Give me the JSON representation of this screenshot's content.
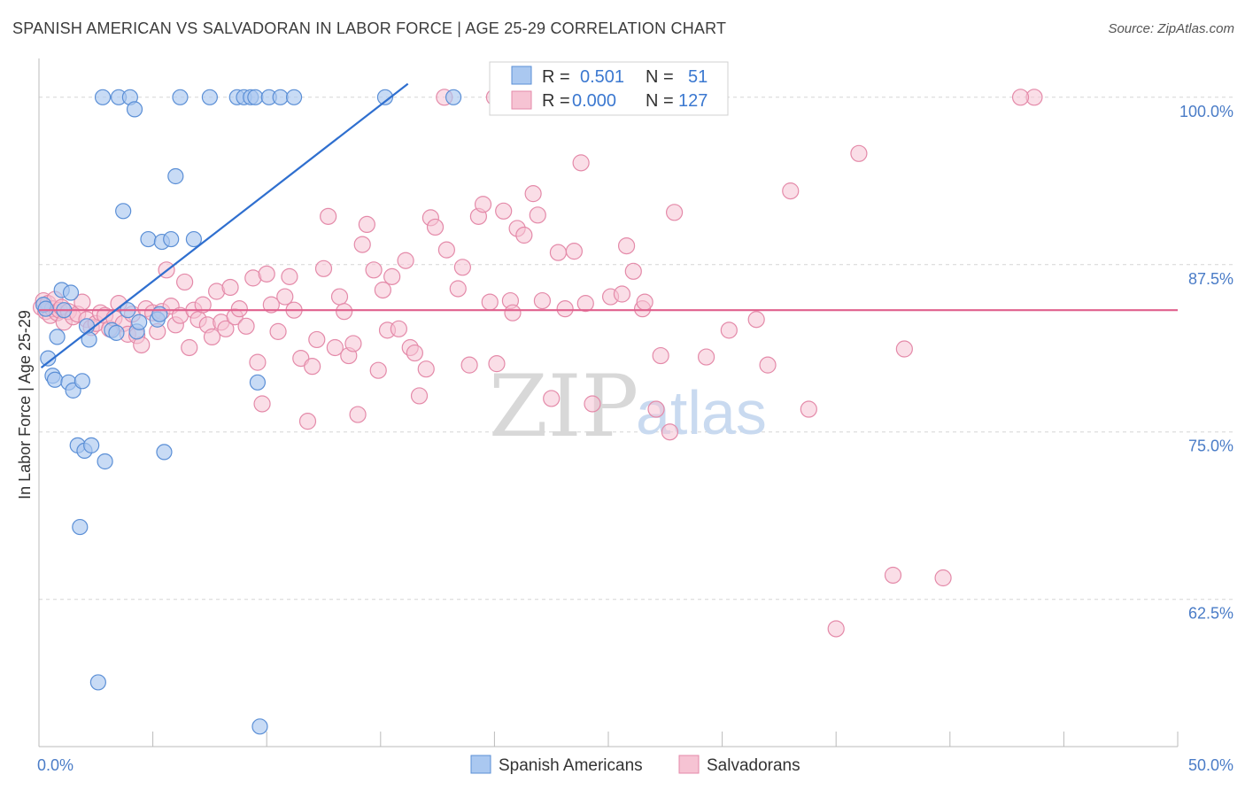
{
  "title": "SPANISH AMERICAN VS SALVADORAN IN LABOR FORCE | AGE 25-29 CORRELATION CHART",
  "source": "Source: ZipAtlas.com",
  "watermark": {
    "zip": "ZIP",
    "atlas": "atlas"
  },
  "legend": {
    "r_label": "R =",
    "n_label": "N =",
    "blue": {
      "r": "0.501",
      "n": "51"
    },
    "pink": {
      "r": "0.000",
      "n": "127"
    }
  },
  "colors": {
    "blue_fill": "#aac8f0",
    "blue_stroke": "#5b8fd6",
    "blue_line": "#2f6fcf",
    "pink_fill": "#f6c3d3",
    "pink_stroke": "#e48aa9",
    "pink_line": "#e0608d",
    "grid": "#d5d5d5",
    "tick_label": "#4a7cc7"
  },
  "chart_data": {
    "type": "scatter",
    "xlabel": "",
    "ylabel": "In Labor Force | Age 25-29",
    "xlim": [
      0,
      50
    ],
    "ylim": [
      51.5,
      102.5
    ],
    "x_tick_labels": [
      {
        "value": 0,
        "label": "0.0%"
      },
      {
        "value": 50,
        "label": "50.0%"
      }
    ],
    "y_tick_labels": [
      {
        "value": 100,
        "label": "100.0%"
      },
      {
        "value": 87.5,
        "label": "87.5%"
      },
      {
        "value": 75,
        "label": "75.0%"
      },
      {
        "value": 62.5,
        "label": "62.5%"
      }
    ],
    "grid": "horizontal dashed",
    "series": [
      {
        "name": "Spanish Americans",
        "color": "#aac8f0",
        "trend": {
          "x": [
            0.1,
            16.2
          ],
          "y": [
            79.8,
            101.0
          ]
        },
        "points": [
          [
            0.2,
            84.5
          ],
          [
            0.3,
            84.2
          ],
          [
            0.4,
            80.5
          ],
          [
            0.6,
            79.2
          ],
          [
            0.7,
            78.9
          ],
          [
            0.8,
            82.1
          ],
          [
            1.0,
            85.6
          ],
          [
            1.1,
            84.1
          ],
          [
            1.3,
            78.7
          ],
          [
            1.4,
            85.4
          ],
          [
            1.5,
            78.1
          ],
          [
            1.7,
            74.0
          ],
          [
            1.8,
            67.9
          ],
          [
            1.9,
            78.8
          ],
          [
            2.0,
            73.6
          ],
          [
            2.1,
            82.9
          ],
          [
            2.2,
            81.9
          ],
          [
            2.3,
            74.0
          ],
          [
            2.6,
            56.3
          ],
          [
            2.9,
            72.8
          ],
          [
            2.8,
            100.0
          ],
          [
            3.2,
            82.6
          ],
          [
            3.4,
            82.4
          ],
          [
            3.7,
            91.5
          ],
          [
            3.5,
            100.0
          ],
          [
            3.9,
            84.1
          ],
          [
            4.0,
            100.0
          ],
          [
            4.2,
            99.1
          ],
          [
            4.3,
            82.5
          ],
          [
            4.4,
            83.2
          ],
          [
            4.8,
            89.4
          ],
          [
            5.2,
            83.4
          ],
          [
            5.3,
            83.8
          ],
          [
            5.4,
            89.2
          ],
          [
            5.5,
            73.5
          ],
          [
            5.8,
            89.4
          ],
          [
            6.0,
            94.1
          ],
          [
            6.2,
            100.0
          ],
          [
            6.8,
            89.4
          ],
          [
            7.5,
            100.0
          ],
          [
            8.7,
            100.0
          ],
          [
            9.0,
            100.0
          ],
          [
            9.3,
            100.0
          ],
          [
            9.6,
            78.7
          ],
          [
            9.5,
            100.0
          ],
          [
            9.7,
            53.0
          ],
          [
            10.1,
            100.0
          ],
          [
            10.6,
            100.0
          ],
          [
            11.2,
            100.0
          ],
          [
            15.2,
            100.0
          ],
          [
            18.2,
            100.0
          ]
        ]
      },
      {
        "name": "Salvadorans",
        "color": "#f6c3d3",
        "trend": {
          "x": [
            0,
            50
          ],
          "y": [
            84.1,
            84.1
          ]
        },
        "points": [
          [
            0.1,
            84.3
          ],
          [
            0.2,
            84.8
          ],
          [
            0.3,
            84.0
          ],
          [
            0.4,
            84.6
          ],
          [
            0.5,
            83.7
          ],
          [
            0.6,
            84.2
          ],
          [
            0.7,
            84.9
          ],
          [
            0.8,
            83.9
          ],
          [
            0.9,
            84.1
          ],
          [
            1.0,
            84.3
          ],
          [
            1.1,
            83.2
          ],
          [
            1.3,
            84.0
          ],
          [
            1.5,
            83.6
          ],
          [
            1.7,
            83.8
          ],
          [
            1.9,
            84.7
          ],
          [
            2.1,
            83.4
          ],
          [
            2.3,
            82.8
          ],
          [
            2.5,
            83.1
          ],
          [
            2.7,
            83.9
          ],
          [
            2.9,
            83.7
          ],
          [
            3.1,
            82.7
          ],
          [
            3.3,
            83.5
          ],
          [
            3.5,
            84.6
          ],
          [
            3.7,
            83.1
          ],
          [
            3.9,
            82.3
          ],
          [
            4.1,
            83.8
          ],
          [
            4.3,
            82.2
          ],
          [
            4.5,
            81.5
          ],
          [
            4.7,
            84.2
          ],
          [
            5.0,
            83.9
          ],
          [
            5.2,
            82.5
          ],
          [
            5.4,
            84.0
          ],
          [
            5.6,
            87.1
          ],
          [
            5.8,
            84.4
          ],
          [
            6.0,
            83.0
          ],
          [
            6.2,
            83.7
          ],
          [
            6.4,
            86.2
          ],
          [
            6.6,
            81.3
          ],
          [
            6.8,
            84.1
          ],
          [
            7.0,
            83.4
          ],
          [
            7.2,
            84.5
          ],
          [
            7.4,
            83.0
          ],
          [
            7.6,
            82.1
          ],
          [
            7.8,
            85.5
          ],
          [
            8.0,
            83.2
          ],
          [
            8.2,
            82.7
          ],
          [
            8.4,
            85.8
          ],
          [
            8.6,
            83.6
          ],
          [
            8.8,
            84.2
          ],
          [
            9.1,
            82.9
          ],
          [
            9.4,
            86.5
          ],
          [
            9.6,
            80.2
          ],
          [
            9.8,
            77.1
          ],
          [
            10.0,
            86.8
          ],
          [
            10.2,
            84.5
          ],
          [
            10.5,
            82.5
          ],
          [
            10.8,
            85.1
          ],
          [
            11.0,
            86.6
          ],
          [
            11.2,
            84.1
          ],
          [
            11.5,
            80.5
          ],
          [
            11.8,
            75.8
          ],
          [
            12.0,
            79.9
          ],
          [
            12.2,
            81.9
          ],
          [
            12.5,
            87.2
          ],
          [
            12.7,
            91.1
          ],
          [
            13.0,
            81.3
          ],
          [
            13.2,
            85.1
          ],
          [
            13.4,
            84.0
          ],
          [
            13.6,
            80.7
          ],
          [
            13.8,
            81.6
          ],
          [
            14.0,
            76.3
          ],
          [
            14.2,
            89.0
          ],
          [
            14.4,
            90.5
          ],
          [
            14.7,
            87.1
          ],
          [
            14.9,
            79.6
          ],
          [
            15.1,
            85.6
          ],
          [
            15.3,
            82.6
          ],
          [
            15.5,
            86.6
          ],
          [
            15.8,
            82.7
          ],
          [
            16.1,
            87.8
          ],
          [
            16.3,
            81.3
          ],
          [
            16.5,
            80.9
          ],
          [
            16.7,
            77.7
          ],
          [
            17.0,
            79.7
          ],
          [
            17.2,
            91.0
          ],
          [
            17.4,
            90.3
          ],
          [
            17.8,
            100.0
          ],
          [
            17.9,
            88.6
          ],
          [
            18.4,
            85.7
          ],
          [
            18.6,
            87.3
          ],
          [
            18.9,
            80.0
          ],
          [
            19.3,
            91.1
          ],
          [
            19.5,
            92.0
          ],
          [
            19.8,
            84.7
          ],
          [
            20.0,
            100.0
          ],
          [
            20.1,
            80.1
          ],
          [
            20.4,
            91.5
          ],
          [
            20.7,
            84.8
          ],
          [
            20.8,
            83.9
          ],
          [
            21.0,
            90.2
          ],
          [
            21.3,
            89.7
          ],
          [
            21.7,
            92.8
          ],
          [
            21.9,
            91.2
          ],
          [
            22.1,
            84.8
          ],
          [
            22.5,
            77.5
          ],
          [
            22.8,
            88.4
          ],
          [
            23.1,
            84.2
          ],
          [
            23.5,
            88.5
          ],
          [
            23.8,
            95.1
          ],
          [
            24.0,
            84.6
          ],
          [
            24.3,
            77.1
          ],
          [
            25.1,
            85.1
          ],
          [
            25.6,
            85.3
          ],
          [
            25.8,
            88.9
          ],
          [
            26.1,
            87.0
          ],
          [
            26.5,
            84.2
          ],
          [
            26.6,
            84.7
          ],
          [
            27.1,
            76.7
          ],
          [
            27.3,
            80.7
          ],
          [
            27.7,
            75.0
          ],
          [
            27.9,
            91.4
          ],
          [
            29.3,
            80.6
          ],
          [
            30.3,
            82.6
          ],
          [
            31.5,
            83.4
          ],
          [
            32.0,
            80.0
          ],
          [
            33.0,
            93.0
          ],
          [
            33.8,
            76.7
          ],
          [
            35.0,
            60.3
          ],
          [
            36.0,
            95.8
          ],
          [
            37.5,
            64.3
          ],
          [
            38.0,
            81.2
          ],
          [
            39.7,
            64.1
          ],
          [
            43.7,
            100.0
          ],
          [
            43.1,
            100.0
          ]
        ]
      }
    ]
  },
  "bottom_legend": {
    "items": [
      {
        "label": "Spanish Americans"
      },
      {
        "label": "Salvadorans"
      }
    ]
  }
}
